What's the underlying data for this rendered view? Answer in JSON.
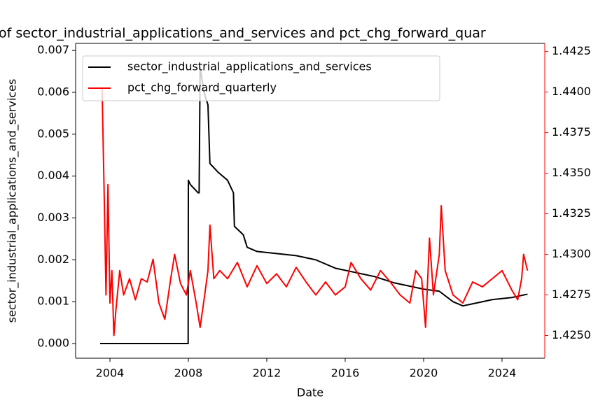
{
  "chart_data": {
    "type": "line",
    "title": "of sector_industrial_applications_and_services and pct_chg_forward_quar",
    "xlabel": "Date",
    "ylabel": "sector_industrial_applications_and_services",
    "xlim": [
      2002.25,
      2026.18
    ],
    "xticks": [
      2004,
      2008,
      2012,
      2016,
      2020,
      2024
    ],
    "ylim": [
      -0.00035,
      0.00717
    ],
    "yticks": [
      {
        "value": 0,
        "label": "0.000"
      },
      0.001,
      0.002,
      0.003,
      0.004,
      0.005,
      0.006,
      0.007
    ],
    "y2lim": [
      1.4236,
      1.443
    ],
    "y2ticks": [
      {
        "value": 1.425,
        "label": "1.4250"
      },
      1.4275,
      {
        "value": 1.43,
        "label": "1.4300"
      },
      1.4325,
      {
        "value": 1.435,
        "label": "1.4350"
      },
      1.4375,
      {
        "value": 1.44,
        "label": "1.4400"
      },
      1.4425
    ],
    "legend": "upper left",
    "series": [
      {
        "name": "sector_industrial_applications_and_services",
        "color": "#000000",
        "x": [
          2003.5,
          2005.0,
          2007.99,
          2008.0,
          2008.1,
          2008.5,
          2008.55,
          2008.6,
          2008.8,
          2009.0,
          2009.1,
          2009.5,
          2010.0,
          2010.3,
          2010.35,
          2010.8,
          2011.0,
          2011.5,
          2012.5,
          2013.5,
          2014.5,
          2015.5,
          2016.5,
          2017.5,
          2018.5,
          2020.0,
          2020.8,
          2021.5,
          2022.0,
          2022.5,
          2023.5,
          2024.5,
          2025.3
        ],
        "values": [
          0,
          0,
          0,
          0.0039,
          0.0038,
          0.0036,
          0.0036,
          0.0066,
          0.006,
          0.0057,
          0.0043,
          0.0041,
          0.0039,
          0.0036,
          0.0028,
          0.0026,
          0.0023,
          0.0022,
          0.00215,
          0.0021,
          0.002,
          0.0018,
          0.0017,
          0.0016,
          0.00145,
          0.0013,
          0.00125,
          0.001,
          0.0009,
          0.00095,
          0.00105,
          0.0011,
          0.00118
        ]
      },
      {
        "name": "pct_chg_forward_quarterly",
        "color": "#ff0000",
        "axis": "y2",
        "x": [
          2003.6,
          2003.7,
          2003.8,
          2003.9,
          2004.0,
          2004.1,
          2004.2,
          2004.3,
          2004.5,
          2004.7,
          2005.0,
          2005.3,
          2005.6,
          2005.9,
          2006.2,
          2006.5,
          2006.8,
          2007.1,
          2007.3,
          2007.6,
          2007.9,
          2008.1,
          2008.4,
          2008.6,
          2008.8,
          2009.0,
          2009.1,
          2009.3,
          2009.6,
          2010.0,
          2010.5,
          2011.0,
          2011.5,
          2012.0,
          2012.5,
          2013.0,
          2013.5,
          2014.0,
          2014.5,
          2015.0,
          2015.5,
          2016.0,
          2016.3,
          2016.8,
          2017.3,
          2017.8,
          2018.3,
          2018.8,
          2019.3,
          2019.6,
          2019.9,
          2020.1,
          2020.3,
          2020.5,
          2020.8,
          2020.9,
          2021.1,
          2021.5,
          2022.0,
          2022.5,
          2023.0,
          2023.5,
          2024.0,
          2024.5,
          2024.8,
          2025.0,
          2025.1,
          2025.3
        ],
        "values": [
          1.4402,
          1.4341,
          1.4275,
          1.4343,
          1.427,
          1.429,
          1.425,
          1.4265,
          1.429,
          1.4275,
          1.4285,
          1.4272,
          1.4285,
          1.4283,
          1.4297,
          1.427,
          1.426,
          1.4285,
          1.43,
          1.4282,
          1.4275,
          1.429,
          1.427,
          1.4255,
          1.4272,
          1.429,
          1.4318,
          1.4285,
          1.429,
          1.4285,
          1.4295,
          1.428,
          1.4293,
          1.4282,
          1.4288,
          1.428,
          1.4292,
          1.4283,
          1.4275,
          1.4283,
          1.4275,
          1.428,
          1.4295,
          1.4285,
          1.4278,
          1.429,
          1.4283,
          1.4275,
          1.427,
          1.429,
          1.4285,
          1.4255,
          1.431,
          1.4275,
          1.43,
          1.433,
          1.429,
          1.4275,
          1.427,
          1.4283,
          1.428,
          1.4285,
          1.429,
          1.4278,
          1.4272,
          1.4285,
          1.43,
          1.429
        ]
      }
    ]
  }
}
